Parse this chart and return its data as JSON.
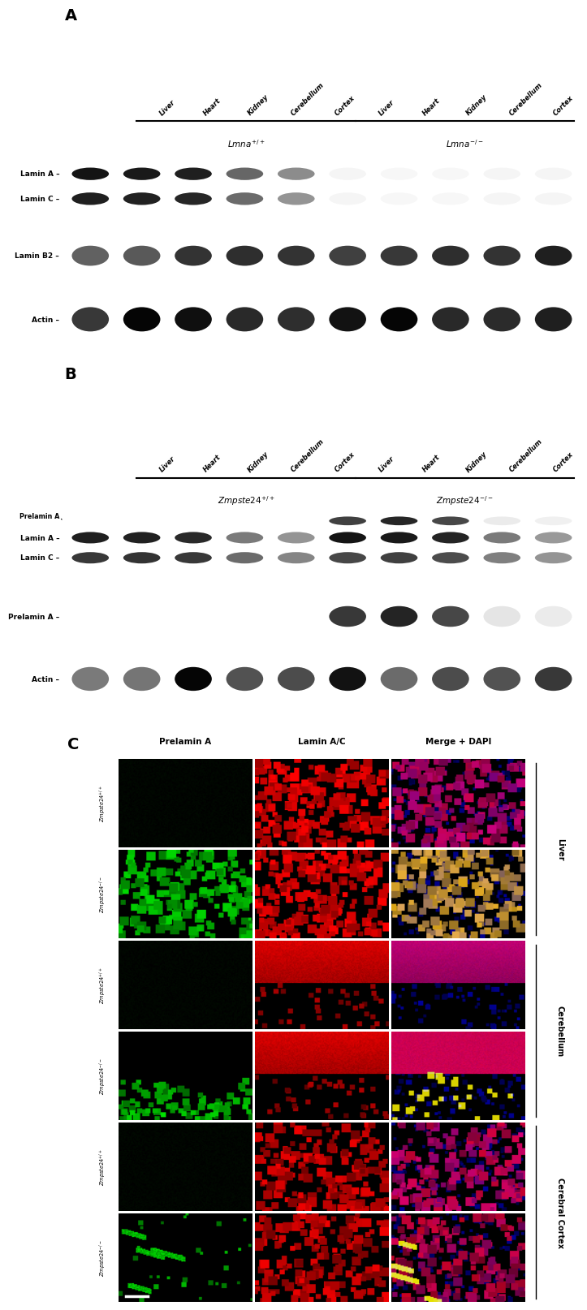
{
  "figure_bg": "#ffffff",
  "tissues": [
    "Liver",
    "Heart",
    "Kidney",
    "Cerebellum",
    "Cortex"
  ],
  "panelA_bands": [
    "Lamin A",
    "Lamin C",
    "Lamin B2",
    "Actin"
  ],
  "panelB_bands": [
    "Prelamin A",
    "Lamin A",
    "Lamin C",
    "Prelamin A",
    "Actin"
  ],
  "panelC_cols": [
    "Prelamin A",
    "Lamin A/C",
    "Merge + DAPI"
  ],
  "tissue_groups": [
    "Liver",
    "Cerebellum",
    "Cerebral Cortex"
  ],
  "lmna_wt": "$\\mathit{Lmna}^{+/+}$",
  "lmna_ko": "$\\mathit{Lmna}^{-/-}$",
  "zmpste_wt": "$\\mathit{Zmpste24}^{+/+}$",
  "zmpste_ko": "$\\mathit{Zmpste24}^{-/-}$",
  "row_labels_C": [
    "$\\mathit{Zmpste24}^{+/+}$",
    "$\\mathit{Zmpste24}^{-/-}$",
    "$\\mathit{Zmpste24}^{+/+}$",
    "$\\mathit{Zmpste24}^{-/-}$",
    "$\\mathit{Zmpste24}^{+/+}$",
    "$\\mathit{Zmpste24}^{-/-}$"
  ]
}
